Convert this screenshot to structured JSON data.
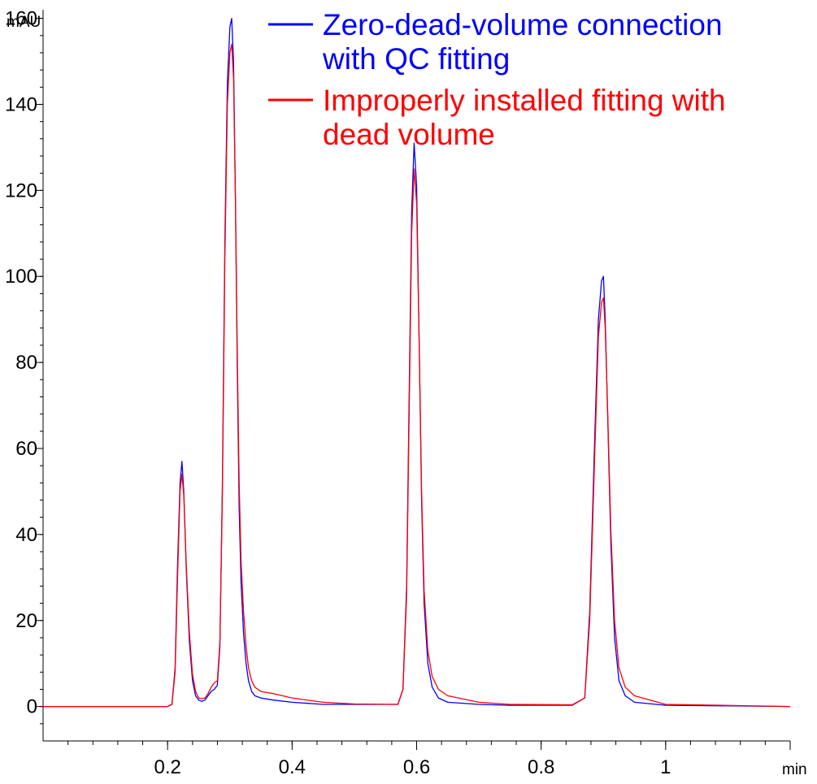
{
  "chart_data": {
    "type": "line",
    "y_unit": "mAU",
    "x_unit": "min",
    "xlim": [
      0,
      1.2
    ],
    "ylim": [
      -8,
      162
    ],
    "x_ticks": [
      0.2,
      0.4,
      0.6,
      0.8,
      1.0
    ],
    "x_tick_labels": [
      "0.2",
      "0.4",
      "0.6",
      "0.8",
      "1"
    ],
    "x_minor_step": 0.04,
    "y_ticks": [
      0,
      20,
      40,
      60,
      80,
      100,
      120,
      140,
      160
    ],
    "y_tick_labels": [
      "0",
      "20",
      "40",
      "60",
      "80",
      "100",
      "120",
      "140",
      "160"
    ],
    "y_minor_step": 4,
    "grid": false,
    "legend_position": "top-right",
    "series": [
      {
        "name": "Zero-dead-volume connection with QC fitting",
        "color": "#0000ff",
        "x": [
          0,
          0.2,
          0.207,
          0.212,
          0.216,
          0.22,
          0.223,
          0.226,
          0.23,
          0.235,
          0.24,
          0.245,
          0.25,
          0.255,
          0.26,
          0.265,
          0.27,
          0.275,
          0.28,
          0.284,
          0.288,
          0.292,
          0.296,
          0.3,
          0.303,
          0.306,
          0.309,
          0.312,
          0.315,
          0.318,
          0.322,
          0.326,
          0.33,
          0.335,
          0.34,
          0.35,
          0.37,
          0.4,
          0.45,
          0.5,
          0.57,
          0.578,
          0.584,
          0.588,
          0.592,
          0.596,
          0.6,
          0.604,
          0.608,
          0.612,
          0.618,
          0.625,
          0.635,
          0.65,
          0.7,
          0.75,
          0.85,
          0.87,
          0.878,
          0.886,
          0.892,
          0.897,
          0.9,
          0.903,
          0.907,
          0.912,
          0.918,
          0.925,
          0.935,
          0.95,
          1.0,
          1.2
        ],
        "y": [
          0,
          0,
          0.5,
          9,
          33,
          52,
          57,
          50,
          32,
          15,
          6,
          2.5,
          1.5,
          1.2,
          1.5,
          2.5,
          3.5,
          4,
          5,
          14,
          52,
          108,
          145,
          158,
          160,
          150,
          118,
          78,
          46,
          29,
          17,
          10,
          6,
          3.5,
          2.5,
          2,
          1.5,
          1,
          0.5,
          0.5,
          0.5,
          4,
          28,
          72,
          115,
          131,
          121,
          85,
          48,
          24,
          10,
          4.5,
          2,
          1,
          0.5,
          0.3,
          0.3,
          2,
          22,
          62,
          90,
          99,
          100,
          90,
          67,
          38,
          16,
          6,
          2.5,
          1,
          0.3,
          0
        ]
      },
      {
        "name": "Improperly installed fitting with dead volume",
        "color": "#ff0000",
        "x": [
          0,
          0.2,
          0.207,
          0.212,
          0.216,
          0.22,
          0.223,
          0.226,
          0.23,
          0.235,
          0.24,
          0.245,
          0.25,
          0.255,
          0.26,
          0.265,
          0.27,
          0.275,
          0.28,
          0.284,
          0.288,
          0.292,
          0.296,
          0.3,
          0.303,
          0.306,
          0.309,
          0.312,
          0.315,
          0.318,
          0.322,
          0.326,
          0.33,
          0.335,
          0.34,
          0.35,
          0.37,
          0.4,
          0.45,
          0.5,
          0.57,
          0.578,
          0.584,
          0.588,
          0.592,
          0.596,
          0.6,
          0.604,
          0.608,
          0.612,
          0.618,
          0.625,
          0.635,
          0.65,
          0.7,
          0.75,
          0.85,
          0.87,
          0.878,
          0.886,
          0.892,
          0.897,
          0.9,
          0.903,
          0.907,
          0.912,
          0.918,
          0.925,
          0.935,
          0.95,
          1.0,
          1.2
        ],
        "y": [
          0,
          0,
          0.5,
          8,
          30,
          50,
          54,
          49,
          33,
          17,
          7.5,
          3.5,
          2,
          1.8,
          2,
          3,
          4.5,
          5.5,
          6,
          15,
          50,
          104,
          140,
          152,
          154,
          146,
          118,
          82,
          52,
          34,
          22,
          14,
          9,
          6,
          4.5,
          3.5,
          3,
          2,
          1,
          0.6,
          0.5,
          4,
          26,
          68,
          110,
          125,
          117,
          85,
          50,
          27,
          13,
          7,
          4,
          2.5,
          1,
          0.5,
          0.4,
          2,
          20,
          58,
          86,
          94,
          95,
          88,
          68,
          41,
          20,
          9,
          4.5,
          2.5,
          0.5,
          0
        ]
      }
    ]
  }
}
